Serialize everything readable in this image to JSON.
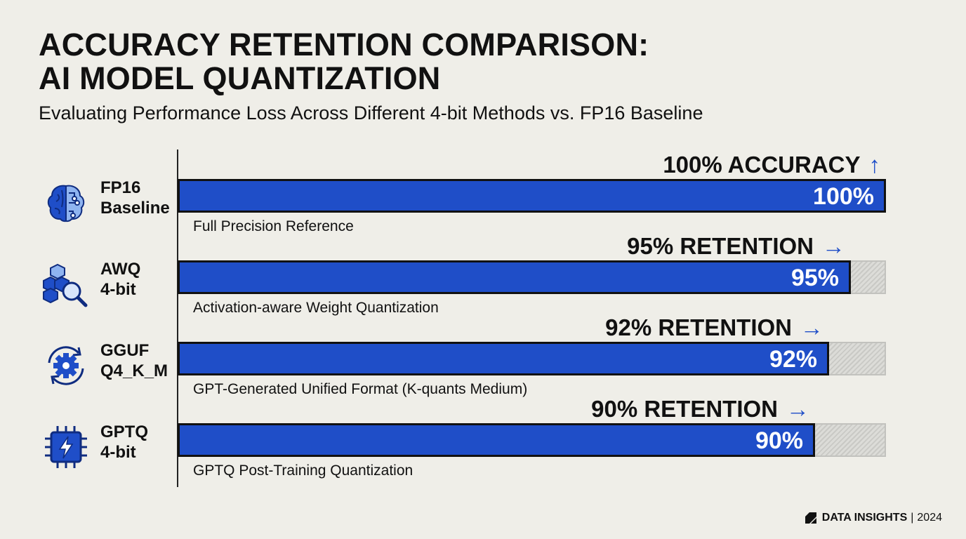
{
  "title_lines": [
    "ACCURACY RETENTION COMPARISON:",
    "AI MODEL QUANTIZATION"
  ],
  "subtitle": "Evaluating Performance Loss Across Different 4-bit Methods vs. FP16 Baseline",
  "footer": {
    "brand": "DATA INSIGHTS",
    "separator": "|",
    "year": "2024"
  },
  "colors": {
    "bar": "#1f4ec8",
    "remainder": "hatched-gray",
    "background": "#efeee8"
  },
  "chart_data": {
    "type": "bar",
    "orientation": "horizontal",
    "xlim": [
      0,
      100
    ],
    "unit": "%",
    "rows": [
      {
        "label_lines": [
          "FP16",
          "Baseline"
        ],
        "icon": "brain-circuit-icon",
        "value": 100,
        "value_label": "100%",
        "callout": "100% ACCURACY",
        "callout_arrow": "arrow-up-icon",
        "description": "Full Precision Reference"
      },
      {
        "label_lines": [
          "AWQ",
          "4-bit"
        ],
        "icon": "cubes-magnifier-icon",
        "value": 95,
        "value_label": "95%",
        "callout": "95% RETENTION",
        "callout_arrow": "arrow-right-icon",
        "description": "Activation-aware Weight Quantization"
      },
      {
        "label_lines": [
          "GGUF",
          "Q4_K_M"
        ],
        "icon": "gear-cycle-icon",
        "value": 92,
        "value_label": "92%",
        "callout": "92% RETENTION",
        "callout_arrow": "arrow-right-icon",
        "description": "GPT-Generated Unified Format (K-quants Medium)"
      },
      {
        "label_lines": [
          "GPTQ",
          "4-bit"
        ],
        "icon": "chip-lightning-icon",
        "value": 90,
        "value_label": "90%",
        "callout": "90% RETENTION",
        "callout_arrow": "arrow-right-icon",
        "description": "GPTQ Post-Training Quantization"
      }
    ]
  }
}
